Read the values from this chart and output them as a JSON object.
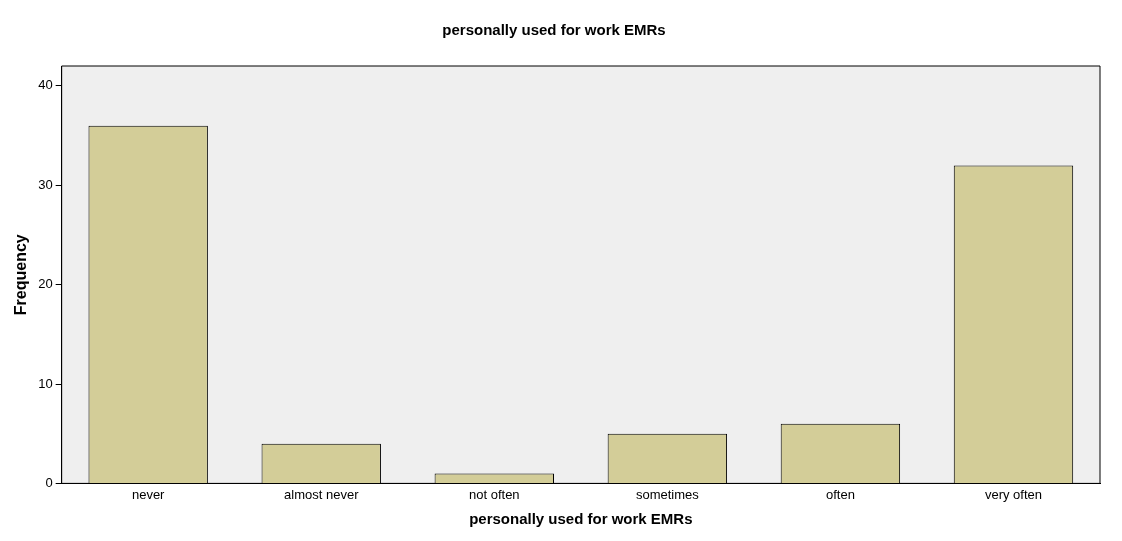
{
  "chart_data": {
    "type": "bar",
    "title": "personally used for work EMRs",
    "xlabel": "personally used for work EMRs",
    "ylabel": "Frequency",
    "categories": [
      "never",
      "almost never",
      "not often",
      "sometimes",
      "often",
      "very often"
    ],
    "values": [
      36,
      4,
      1,
      5,
      6,
      32
    ],
    "color": "#d3cd98",
    "ylim": [
      0,
      42
    ],
    "yticks": [
      0,
      10,
      20,
      30,
      40
    ],
    "grid": false,
    "legend": false
  }
}
